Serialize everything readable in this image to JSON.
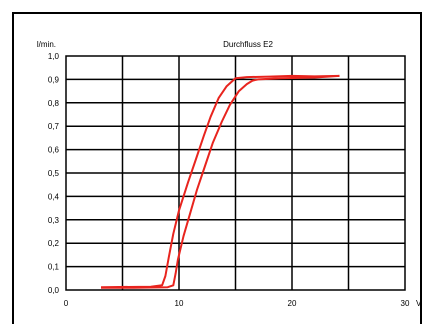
{
  "chart_data": {
    "type": "line",
    "title": "Durchfluss E2",
    "ylabel": "l/min.",
    "xlabel": "V",
    "xlim": [
      0,
      30
    ],
    "ylim": [
      0,
      1.0
    ],
    "x_ticks": [
      "0",
      "10",
      "20",
      "30"
    ],
    "y_ticks": [
      "0,0",
      "0,1",
      "0,2",
      "0,3",
      "0,4",
      "0,5",
      "0,6",
      "0,7",
      "0,8",
      "0,9",
      "1,0"
    ],
    "grid": true,
    "line_color": "#e8241e",
    "series": [
      {
        "values": [
          [
            3.1,
            0.012
          ],
          [
            7.5,
            0.014
          ],
          [
            8.5,
            0.02
          ],
          [
            8.8,
            0.06
          ],
          [
            9.1,
            0.14
          ],
          [
            9.5,
            0.24
          ],
          [
            10.0,
            0.34
          ],
          [
            10.8,
            0.46
          ],
          [
            11.5,
            0.56
          ],
          [
            12.2,
            0.66
          ],
          [
            12.8,
            0.74
          ],
          [
            13.5,
            0.82
          ],
          [
            14.2,
            0.87
          ],
          [
            15.0,
            0.905
          ],
          [
            16.0,
            0.91
          ],
          [
            18.0,
            0.912
          ],
          [
            20.0,
            0.915
          ],
          [
            22.0,
            0.913
          ],
          [
            24.2,
            0.915
          ]
        ]
      },
      {
        "values": [
          [
            24.2,
            0.915
          ],
          [
            22.0,
            0.908
          ],
          [
            19.0,
            0.905
          ],
          [
            17.0,
            0.9
          ],
          [
            16.5,
            0.895
          ],
          [
            16.0,
            0.88
          ],
          [
            15.3,
            0.85
          ],
          [
            14.5,
            0.79
          ],
          [
            13.8,
            0.72
          ],
          [
            13.0,
            0.63
          ],
          [
            12.3,
            0.53
          ],
          [
            11.6,
            0.43
          ],
          [
            11.0,
            0.33
          ],
          [
            10.4,
            0.23
          ],
          [
            9.9,
            0.13
          ],
          [
            9.7,
            0.07
          ],
          [
            9.5,
            0.02
          ],
          [
            9.0,
            0.012
          ],
          [
            6.0,
            0.01
          ],
          [
            3.1,
            0.01
          ]
        ]
      }
    ]
  }
}
